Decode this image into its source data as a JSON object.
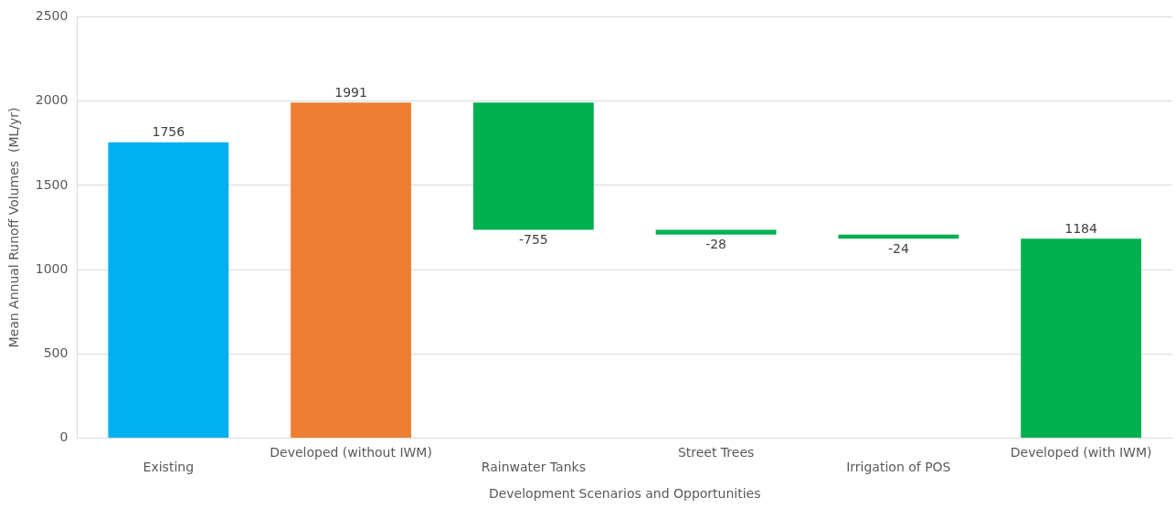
{
  "chart_data": {
    "type": "bar",
    "xlabel": "Development Scenarios and Opportunities",
    "ylabel": "Mean Annual Runoff Volumes  (ML/yr)",
    "categories": [
      "Existing",
      "Developed (without IWM)",
      "Rainwater Tanks",
      "Street Trees",
      "Irrigation of POS",
      "Developed (with IWM)"
    ],
    "values": [
      1756,
      1991,
      -755,
      -28,
      -24,
      1184
    ],
    "base": [
      0,
      0,
      1991,
      1236,
      1208,
      0
    ],
    "colors": [
      "#00b0f0",
      "#ed7d31",
      "#00b050",
      "#00b050",
      "#00b050",
      "#00b050"
    ],
    "ylim": [
      0,
      2500
    ],
    "yticks": [
      0,
      500,
      1000,
      1500,
      2000,
      2500
    ],
    "grid": "y",
    "legend": false,
    "data_labels": true
  }
}
